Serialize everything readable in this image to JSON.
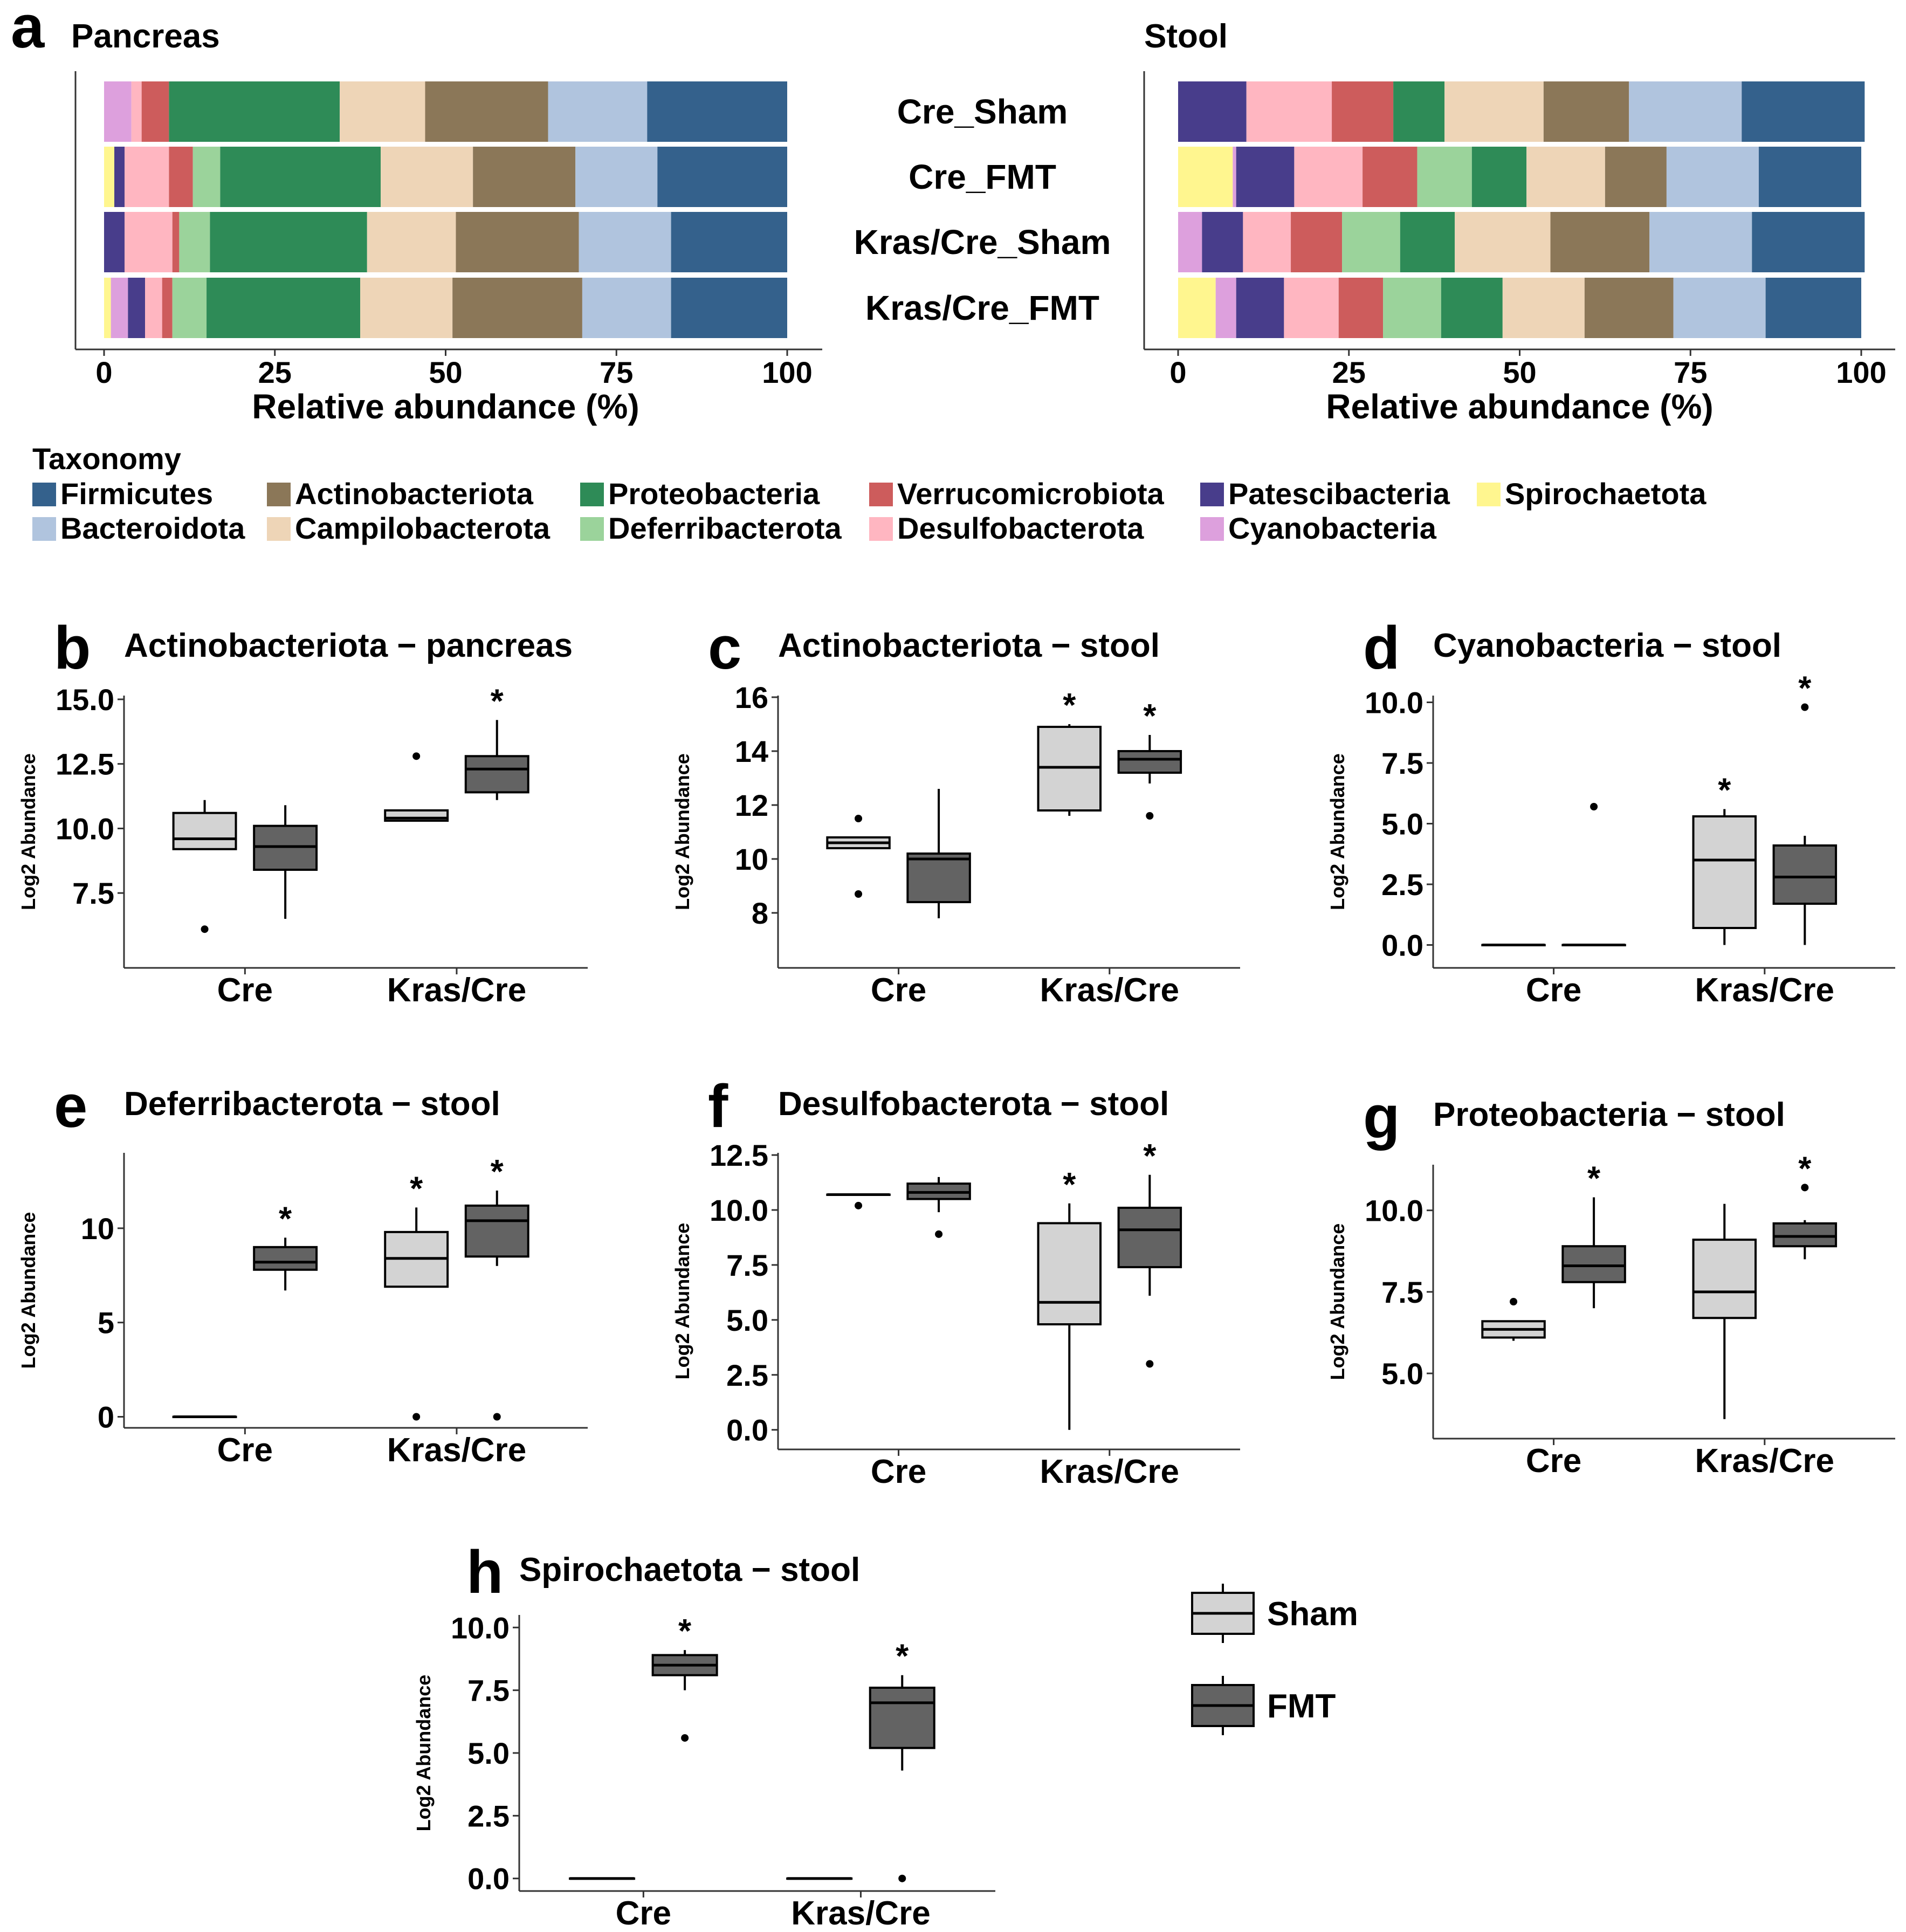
{
  "chart_data": [
    {
      "type": "bar",
      "panel": "a",
      "title": "Pancreas",
      "orientation": "horizontal-stacked",
      "xlabel": "Relative abundance (%)",
      "xlim": [
        0,
        100
      ],
      "xticks": [
        "0",
        "25",
        "50",
        "75",
        "100"
      ],
      "categories": [
        "Cre_Sham",
        "Cre_FMT",
        "Kras/Cre_Sham",
        "Kras/Cre_FMT"
      ],
      "series": [
        {
          "name": "Spirochaetota",
          "values": [
            0,
            1.5,
            0,
            1
          ]
        },
        {
          "name": "Cyanobacteria",
          "values": [
            4,
            0,
            0,
            2.5
          ]
        },
        {
          "name": "Patescibacteria",
          "values": [
            0,
            1.5,
            3,
            2.5
          ]
        },
        {
          "name": "Desulfobacterota",
          "values": [
            1.5,
            6.5,
            7,
            2.5
          ]
        },
        {
          "name": "Verrucomicrobiota",
          "values": [
            4,
            3.5,
            1,
            1.5
          ]
        },
        {
          "name": "Deferribacterota",
          "values": [
            0,
            4,
            4.5,
            5
          ]
        },
        {
          "name": "Proteobacteria",
          "values": [
            25,
            23.5,
            23,
            22.5
          ]
        },
        {
          "name": "Campilobacterota",
          "values": [
            12.5,
            13.5,
            13,
            13.5
          ]
        },
        {
          "name": "Actinobacteriota",
          "values": [
            18,
            15,
            18,
            19
          ]
        },
        {
          "name": "Bacteroidota",
          "values": [
            14.5,
            12,
            13.5,
            13
          ]
        },
        {
          "name": "Firmicutes",
          "values": [
            20.5,
            19,
            17,
            17
          ]
        }
      ]
    },
    {
      "type": "bar",
      "panel": "a",
      "title": "Stool",
      "orientation": "horizontal-stacked",
      "xlabel": "Relative abundance (%)",
      "xlim": [
        0,
        100
      ],
      "xticks": [
        "0",
        "25",
        "50",
        "75",
        "100"
      ],
      "categories": [
        "Cre_Sham",
        "Cre_FMT",
        "Kras/Cre_Sham",
        "Kras/Cre_FMT"
      ],
      "series": [
        {
          "name": "Spirochaetota",
          "values": [
            0,
            8,
            0,
            5.5
          ]
        },
        {
          "name": "Cyanobacteria",
          "values": [
            0,
            0.5,
            3.5,
            3
          ]
        },
        {
          "name": "Patescibacteria",
          "values": [
            10,
            8.5,
            6,
            7
          ]
        },
        {
          "name": "Desulfobacterota",
          "values": [
            12.5,
            10,
            7,
            8
          ]
        },
        {
          "name": "Verrucomicrobiota",
          "values": [
            9,
            8,
            7.5,
            6.5
          ]
        },
        {
          "name": "Deferribacterota",
          "values": [
            0,
            8,
            8.5,
            8.5
          ]
        },
        {
          "name": "Proteobacteria",
          "values": [
            7.5,
            8,
            8,
            9
          ]
        },
        {
          "name": "Campilobacterota",
          "values": [
            14.5,
            11.5,
            14,
            12
          ]
        },
        {
          "name": "Actinobacteriota",
          "values": [
            12.5,
            9,
            14.5,
            13
          ]
        },
        {
          "name": "Bacteroidota",
          "values": [
            16.5,
            13.5,
            15,
            13.5
          ]
        },
        {
          "name": "Firmicutes",
          "values": [
            18,
            15,
            16.5,
            14
          ]
        }
      ]
    },
    {
      "type": "box",
      "panel": "b",
      "title": "Actinobacteriota − pancreas",
      "ylabel": "Log2 Abundance",
      "ylim": [
        6,
        15.5
      ],
      "yticks": [
        "15.0",
        "12.5",
        "10.0",
        "7.5"
      ],
      "ytick_values": [
        15,
        12.5,
        10,
        7.5
      ],
      "categories": [
        "Cre",
        "Kras/Cre"
      ],
      "groups": [
        {
          "category": "Cre",
          "group": "Sham",
          "min": 9.2,
          "q1": 9.2,
          "median": 9.6,
          "q3": 10.6,
          "max": 11.1,
          "outliers": [
            6.1
          ],
          "star": false
        },
        {
          "category": "Cre",
          "group": "FMT",
          "min": 6.5,
          "q1": 8.4,
          "median": 9.3,
          "q3": 10.1,
          "max": 10.9,
          "outliers": [],
          "star": false
        },
        {
          "category": "Kras/Cre",
          "group": "Sham",
          "min": 10.3,
          "q1": 10.3,
          "median": 10.4,
          "q3": 10.7,
          "max": 10.7,
          "outliers": [
            12.8
          ],
          "star": false
        },
        {
          "category": "Kras/Cre",
          "group": "FMT",
          "min": 11.1,
          "q1": 11.4,
          "median": 12.3,
          "q3": 12.8,
          "max": 14.2,
          "outliers": [],
          "star": true
        }
      ]
    },
    {
      "type": "box",
      "panel": "c",
      "title": "Actinobacteriota − stool",
      "ylabel": "Log2 Abundance",
      "ylim": [
        7.3,
        16.4
      ],
      "yticks": [
        "16",
        "14",
        "12",
        "10",
        "8"
      ],
      "ytick_values": [
        16,
        14,
        12,
        10,
        8
      ],
      "categories": [
        "Cre",
        "Kras/Cre"
      ],
      "groups": [
        {
          "category": "Cre",
          "group": "Sham",
          "min": 10.4,
          "q1": 10.4,
          "median": 10.6,
          "q3": 10.8,
          "max": 10.8,
          "outliers": [
            11.5,
            8.7
          ],
          "star": false
        },
        {
          "category": "Cre",
          "group": "FMT",
          "min": 7.8,
          "q1": 8.4,
          "median": 10.0,
          "q3": 10.2,
          "max": 12.6,
          "outliers": [],
          "star": false
        },
        {
          "category": "Kras/Cre",
          "group": "Sham",
          "min": 11.6,
          "q1": 11.8,
          "median": 13.4,
          "q3": 14.9,
          "max": 15.0,
          "outliers": [],
          "star": true
        },
        {
          "category": "Kras/Cre",
          "group": "FMT",
          "min": 12.8,
          "q1": 13.2,
          "median": 13.7,
          "q3": 14.0,
          "max": 14.6,
          "outliers": [
            11.6
          ],
          "star": true
        }
      ]
    },
    {
      "type": "box",
      "panel": "d",
      "title": "Cyanobacteria − stool",
      "ylabel": "Log2 Abundance",
      "ylim": [
        -0.5,
        10.5
      ],
      "yticks": [
        "10.0",
        "7.5",
        "5.0",
        "2.5",
        "0.0"
      ],
      "ytick_values": [
        10,
        7.5,
        5,
        2.5,
        0
      ],
      "categories": [
        "Cre",
        "Kras/Cre"
      ],
      "groups": [
        {
          "category": "Cre",
          "group": "Sham",
          "min": 0,
          "q1": 0,
          "median": 0,
          "q3": 0,
          "max": 0,
          "outliers": [],
          "star": false
        },
        {
          "category": "Cre",
          "group": "FMT",
          "min": 0,
          "q1": 0,
          "median": 0,
          "q3": 0,
          "max": 0,
          "outliers": [
            5.7
          ],
          "star": false
        },
        {
          "category": "Kras/Cre",
          "group": "Sham",
          "min": 0,
          "q1": 0.7,
          "median": 3.5,
          "q3": 5.3,
          "max": 5.6,
          "outliers": [],
          "star": true
        },
        {
          "category": "Kras/Cre",
          "group": "FMT",
          "min": 0,
          "q1": 1.7,
          "median": 2.8,
          "q3": 4.1,
          "max": 4.5,
          "outliers": [
            9.8
          ],
          "star": true
        }
      ]
    },
    {
      "type": "box",
      "panel": "e",
      "title": "Deferribacterota − stool",
      "ylabel": "Log2 Abundance",
      "ylim": [
        -0.3,
        14.0
      ],
      "yticks": [
        "10",
        "5",
        "0"
      ],
      "ytick_values": [
        10,
        5,
        0
      ],
      "categories": [
        "Cre",
        "Kras/Cre"
      ],
      "groups": [
        {
          "category": "Cre",
          "group": "Sham",
          "min": 0,
          "q1": 0,
          "median": 0,
          "q3": 0,
          "max": 0,
          "outliers": [],
          "star": false
        },
        {
          "category": "Cre",
          "group": "FMT",
          "min": 6.7,
          "q1": 7.8,
          "median": 8.2,
          "q3": 9.0,
          "max": 9.5,
          "outliers": [],
          "star": true
        },
        {
          "category": "Kras/Cre",
          "group": "Sham",
          "min": 6.9,
          "q1": 6.9,
          "median": 8.4,
          "q3": 9.8,
          "max": 11.1,
          "outliers": [
            0
          ],
          "star": true
        },
        {
          "category": "Kras/Cre",
          "group": "FMT",
          "min": 8.0,
          "q1": 8.5,
          "median": 10.4,
          "q3": 11.2,
          "max": 12.0,
          "outliers": [
            0
          ],
          "star": true
        }
      ]
    },
    {
      "type": "box",
      "panel": "f",
      "title": "Desulfobacterota − stool",
      "ylabel": "Log2 Abundance",
      "ylim": [
        -0.4,
        12.6
      ],
      "yticks": [
        "12.5",
        "10.0",
        "7.5",
        "5.0",
        "2.5",
        "0.0"
      ],
      "ytick_values": [
        12.5,
        10,
        7.5,
        5,
        2.5,
        0
      ],
      "categories": [
        "Cre",
        "Kras/Cre"
      ],
      "groups": [
        {
          "category": "Cre",
          "group": "Sham",
          "min": 10.7,
          "q1": 10.7,
          "median": 10.7,
          "q3": 10.7,
          "max": 10.7,
          "outliers": [
            10.2
          ],
          "star": false
        },
        {
          "category": "Cre",
          "group": "FMT",
          "min": 9.9,
          "q1": 10.5,
          "median": 10.8,
          "q3": 11.2,
          "max": 11.5,
          "outliers": [
            8.9
          ],
          "star": false
        },
        {
          "category": "Kras/Cre",
          "group": "Sham",
          "min": 0,
          "q1": 4.8,
          "median": 5.8,
          "q3": 9.4,
          "max": 10.3,
          "outliers": [],
          "star": true
        },
        {
          "category": "Kras/Cre",
          "group": "FMT",
          "min": 6.1,
          "q1": 7.4,
          "median": 9.1,
          "q3": 10.1,
          "max": 11.6,
          "outliers": [
            3.0
          ],
          "star": true
        }
      ]
    },
    {
      "type": "box",
      "panel": "g",
      "title": "Proteobacteria − stool",
      "ylabel": "Log2 Abundance",
      "ylim": [
        3.0,
        11.4
      ],
      "yticks": [
        "10.0",
        "7.5",
        "5.0"
      ],
      "ytick_values": [
        10,
        7.5,
        5
      ],
      "categories": [
        "Cre",
        "Kras/Cre"
      ],
      "groups": [
        {
          "category": "Cre",
          "group": "Sham",
          "min": 6.0,
          "q1": 6.1,
          "median": 6.35,
          "q3": 6.6,
          "max": 6.6,
          "outliers": [
            7.2
          ],
          "star": false
        },
        {
          "category": "Cre",
          "group": "FMT",
          "min": 7.0,
          "q1": 7.8,
          "median": 8.3,
          "q3": 8.9,
          "max": 10.4,
          "outliers": [],
          "star": true
        },
        {
          "category": "Kras/Cre",
          "group": "Sham",
          "min": 3.6,
          "q1": 6.7,
          "median": 7.5,
          "q3": 9.1,
          "max": 10.2,
          "outliers": [],
          "star": false
        },
        {
          "category": "Kras/Cre",
          "group": "FMT",
          "min": 8.5,
          "q1": 8.9,
          "median": 9.2,
          "q3": 9.6,
          "max": 9.7,
          "outliers": [
            10.7
          ],
          "star": true
        }
      ]
    },
    {
      "type": "box",
      "panel": "h",
      "title": "Spirochaetota − stool",
      "ylabel": "Log2 Abundance",
      "ylim": [
        -0.5,
        10.5
      ],
      "yticks": [
        "10.0",
        "7.5",
        "5.0",
        "2.5",
        "0.0"
      ],
      "ytick_values": [
        10,
        7.5,
        5,
        2.5,
        0
      ],
      "categories": [
        "Cre",
        "Kras/Cre"
      ],
      "groups": [
        {
          "category": "Cre",
          "group": "Sham",
          "min": 0,
          "q1": 0,
          "median": 0,
          "q3": 0,
          "max": 0,
          "outliers": [],
          "star": false
        },
        {
          "category": "Cre",
          "group": "FMT",
          "min": 7.5,
          "q1": 8.1,
          "median": 8.5,
          "q3": 8.9,
          "max": 9.1,
          "outliers": [
            5.6
          ],
          "star": true
        },
        {
          "category": "Kras/Cre",
          "group": "Sham",
          "min": 0,
          "q1": 0,
          "median": 0,
          "q3": 0,
          "max": 0,
          "outliers": [],
          "star": false
        },
        {
          "category": "Kras/Cre",
          "group": "FMT",
          "min": 4.3,
          "q1": 5.2,
          "median": 7.0,
          "q3": 7.6,
          "max": 8.1,
          "outliers": [
            0
          ],
          "star": true
        }
      ]
    }
  ],
  "panel_letters": [
    "a",
    "b",
    "c",
    "d",
    "e",
    "f",
    "g",
    "h"
  ],
  "legend": {
    "title": "Taxonomy",
    "items": [
      {
        "name": "Firmicutes",
        "color": "#34618C"
      },
      {
        "name": "Bacteroidota",
        "color": "#B0C4DE"
      },
      {
        "name": "Actinobacteriota",
        "color": "#8B7758"
      },
      {
        "name": "Campilobacterota",
        "color": "#EED5B7"
      },
      {
        "name": "Proteobacteria",
        "color": "#2E8B57"
      },
      {
        "name": "Deferribacterota",
        "color": "#9BD39B"
      },
      {
        "name": "Verrucomicrobiota",
        "color": "#CD5C5C"
      },
      {
        "name": "Desulfobacterota",
        "color": "#FFB6C1"
      },
      {
        "name": "Patescibacteria",
        "color": "#483D8B"
      },
      {
        "name": "Cyanobacteria",
        "color": "#DDA0DD"
      },
      {
        "name": "Spirochaetota",
        "color": "#FFF68F"
      }
    ]
  },
  "group_key": {
    "items": [
      {
        "name": "Sham",
        "color": "#D3D3D3"
      },
      {
        "name": "FMT",
        "color": "#636363"
      }
    ]
  },
  "significance_mark": "*"
}
